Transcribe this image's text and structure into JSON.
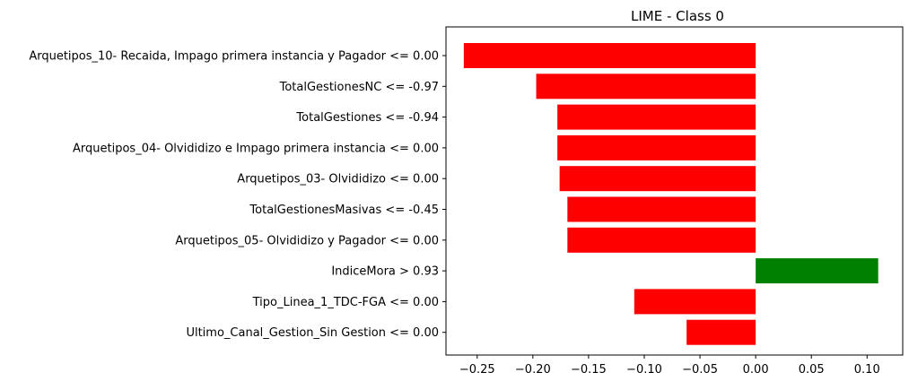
{
  "chart_data": {
    "type": "bar",
    "orientation": "horizontal",
    "title": "LIME - Class 0",
    "xlabel": "",
    "ylabel": "",
    "categories": [
      "Arquetipos_10- Recaida, Impago primera instancia y Pagador <= 0.00",
      "TotalGestionesNC <= -0.97",
      "TotalGestiones <= -0.94",
      "Arquetipos_04- Olvididizo e Impago primera instancia <= 0.00",
      "Arquetipos_03- Olvididizo <= 0.00",
      "TotalGestionesMasivas <= -0.45",
      "Arquetipos_05- Olvididizo y Pagador <= 0.00",
      "IndiceMora > 0.93",
      "Tipo_Linea_1_TDC-FGA <= 0.00",
      "Ultimo_Canal_Gestion_Sin Gestion <= 0.00"
    ],
    "values": [
      -0.262,
      -0.197,
      -0.178,
      -0.178,
      -0.176,
      -0.169,
      -0.169,
      0.11,
      -0.109,
      -0.062
    ],
    "xlim": [
      -0.278,
      0.132
    ],
    "xticks": [
      -0.25,
      -0.2,
      -0.15,
      -0.1,
      -0.05,
      0.0,
      0.05,
      0.1
    ],
    "xtick_labels": [
      "−0.25",
      "−0.20",
      "−0.15",
      "−0.10",
      "−0.05",
      "0.00",
      "0.05",
      "0.10"
    ],
    "colors": {
      "positive": "#008000",
      "negative": "#ff0000"
    },
    "grid": false,
    "legend": "none"
  }
}
